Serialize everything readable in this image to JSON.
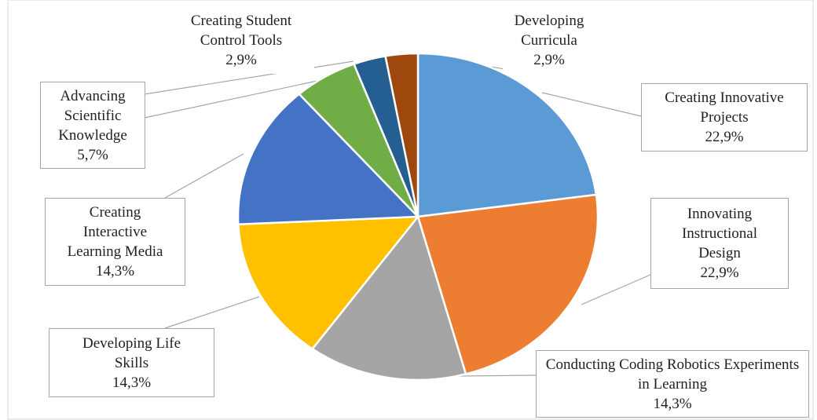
{
  "chart_data": {
    "type": "pie",
    "categories": [
      "Creating Innovative Projects",
      "Innovating Instructional Design",
      "Conducting Coding Robotics Experiments in Learning",
      "Developing Life Skills",
      "Creating Interactive Learning Media",
      "Advancing Scientific Knowledge",
      "Creating Student Control Tools",
      "Developing Curricula"
    ],
    "values": [
      22.9,
      22.9,
      14.3,
      14.3,
      14.3,
      5.7,
      2.9,
      2.9
    ],
    "value_labels": [
      "22,9%",
      "22,9%",
      "14,3%",
      "14,3%",
      "14,3%",
      "5,7%",
      "2,9%",
      "2,9%"
    ],
    "colors": [
      "#5b9bd5",
      "#ed7d31",
      "#a5a5a5",
      "#ffc000",
      "#4472c4",
      "#70ad47",
      "#255e91",
      "#9e480e"
    ]
  }
}
